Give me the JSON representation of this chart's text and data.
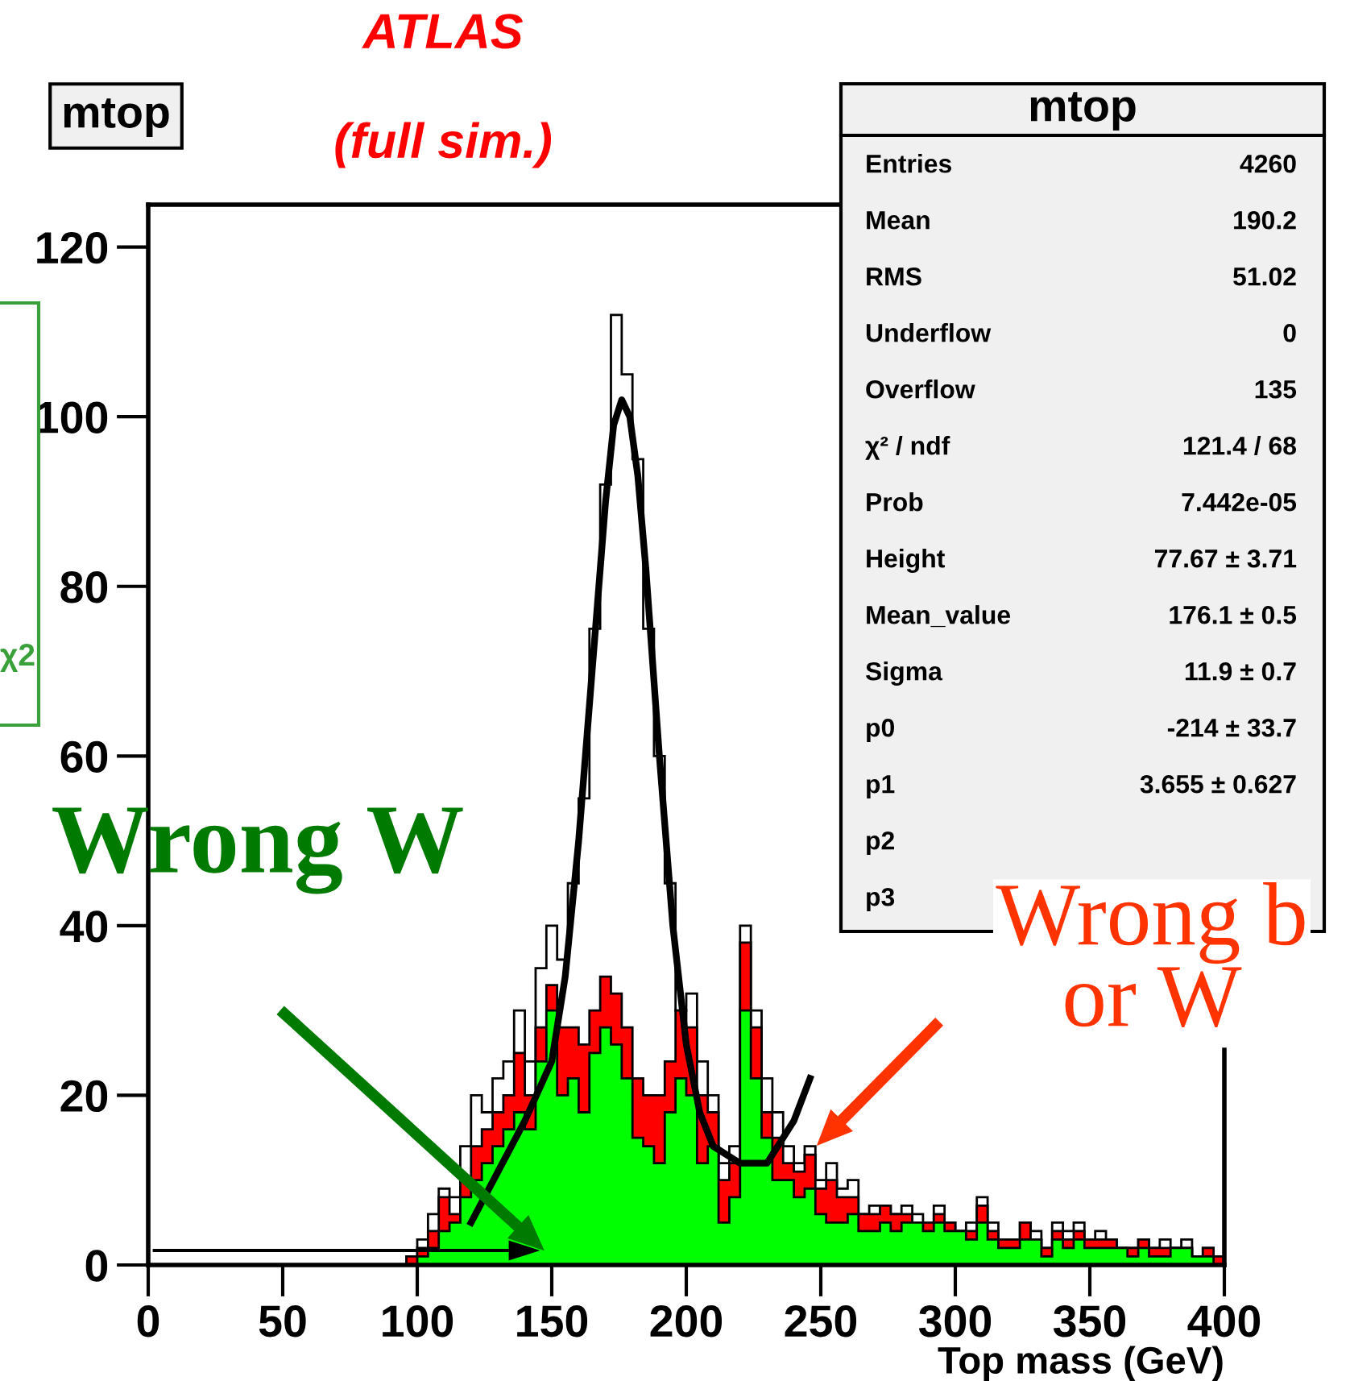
{
  "chart_data": {
    "type": "histogram",
    "title": "ATLAS",
    "subtitle": "(full sim.)",
    "xlabel": "Top mass (GeV)",
    "bins": [
      96,
      100,
      104,
      108,
      112,
      116,
      120,
      124,
      128,
      132,
      136,
      140,
      144,
      148,
      152,
      156,
      160,
      164,
      168,
      172,
      176,
      180,
      184,
      188,
      192,
      196,
      200,
      204,
      208,
      212,
      216,
      220,
      224,
      228,
      232,
      236,
      240,
      244,
      248,
      252,
      256,
      260,
      264,
      268,
      272,
      276,
      280,
      284,
      288,
      292,
      296,
      300,
      304,
      308,
      312,
      316,
      320,
      324,
      328,
      332,
      336,
      340,
      344,
      348,
      352,
      356,
      360,
      364,
      368,
      372,
      376,
      380,
      384,
      388,
      392,
      396,
      400
    ],
    "series": [
      {
        "color": "#ffffff",
        "values": [
          1,
          3,
          6,
          9,
          8,
          14,
          20,
          18,
          22,
          24,
          30,
          24,
          35,
          40,
          36,
          45,
          55,
          75,
          92,
          112,
          105,
          95,
          75,
          60,
          45,
          30,
          32,
          24,
          20,
          12,
          14,
          40,
          30,
          22,
          18,
          14,
          12,
          14,
          10,
          12,
          9,
          10,
          6,
          7,
          7,
          6,
          7,
          6,
          5,
          7,
          5,
          4,
          5,
          8,
          5,
          3,
          3,
          5,
          4,
          2,
          5,
          4,
          5,
          3,
          4,
          3,
          2,
          2,
          3,
          2,
          3,
          2,
          3,
          1,
          2,
          1
        ]
      },
      {
        "color": "#ff0000",
        "values": [
          1,
          2,
          4,
          8,
          6,
          10,
          14,
          16,
          18,
          20,
          25,
          20,
          28,
          33,
          28,
          28,
          26,
          30,
          34,
          32,
          28,
          22,
          20,
          20,
          24,
          30,
          28,
          20,
          18,
          10,
          12,
          38,
          28,
          18,
          15,
          12,
          11,
          13,
          9,
          10,
          8,
          8,
          6,
          6,
          7,
          6,
          6,
          5,
          5,
          6,
          5,
          4,
          4,
          7,
          4,
          3,
          3,
          5,
          3,
          2,
          4,
          3,
          4,
          3,
          3,
          3,
          2,
          2,
          3,
          2,
          2,
          2,
          2,
          1,
          2,
          1
        ]
      },
      {
        "color": "#00ff00",
        "values": [
          0,
          1,
          2,
          4,
          5,
          8,
          10,
          12,
          14,
          16,
          18,
          16,
          24,
          30,
          20,
          22,
          18,
          25,
          28,
          26,
          22,
          15,
          14,
          12,
          18,
          22,
          20,
          12,
          14,
          5,
          8,
          30,
          22,
          15,
          10,
          10,
          8,
          9,
          6,
          5,
          5,
          6,
          4,
          4,
          5,
          4,
          5,
          5,
          4,
          5,
          4,
          4,
          3,
          5,
          3,
          2,
          2,
          3,
          3,
          1,
          3,
          2,
          3,
          2,
          2,
          2,
          2,
          1,
          2,
          1,
          1,
          2,
          2,
          1,
          1,
          0
        ]
      },
      {
        "type": "line",
        "color": "#000000",
        "x": [
          120,
          130,
          140,
          150,
          155,
          160,
          165,
          170,
          173,
          176,
          179,
          182,
          185,
          190,
          195,
          200,
          205,
          210,
          220,
          230,
          240,
          246
        ],
        "values": [
          5,
          11,
          17,
          24,
          34,
          50,
          70,
          90,
          99,
          102,
          100,
          93,
          82,
          60,
          40,
          26,
          18,
          14,
          12,
          12,
          17,
          22
        ]
      }
    ],
    "xlim": [
      0,
      400
    ],
    "ylim": [
      0,
      125
    ],
    "xticks": [
      0,
      50,
      100,
      150,
      200,
      250,
      300,
      350,
      400
    ],
    "yticks": [
      0,
      20,
      40,
      60,
      80,
      100,
      120
    ],
    "grid": false,
    "annotations": [
      "mtop",
      "mtop",
      "Entries",
      "4260",
      "Mean",
      "190.2",
      "RMS",
      "51.02",
      "Underflow",
      "0",
      "Overflow",
      "135",
      "χ² / ndf",
      "121.4 / 68",
      "Prob",
      "7.442e-05",
      "Height",
      "77.67 ± 3.71",
      "Mean_value",
      "176.1 ± 0.5",
      "Sigma",
      "11.9 ± 0.7",
      "p0",
      "-214 ± 33.7",
      "p1",
      "3.655 ± 0.627",
      "p2",
      "p3",
      "Wrong W",
      "Wrong b\nor W",
      "χ2"
    ]
  }
}
